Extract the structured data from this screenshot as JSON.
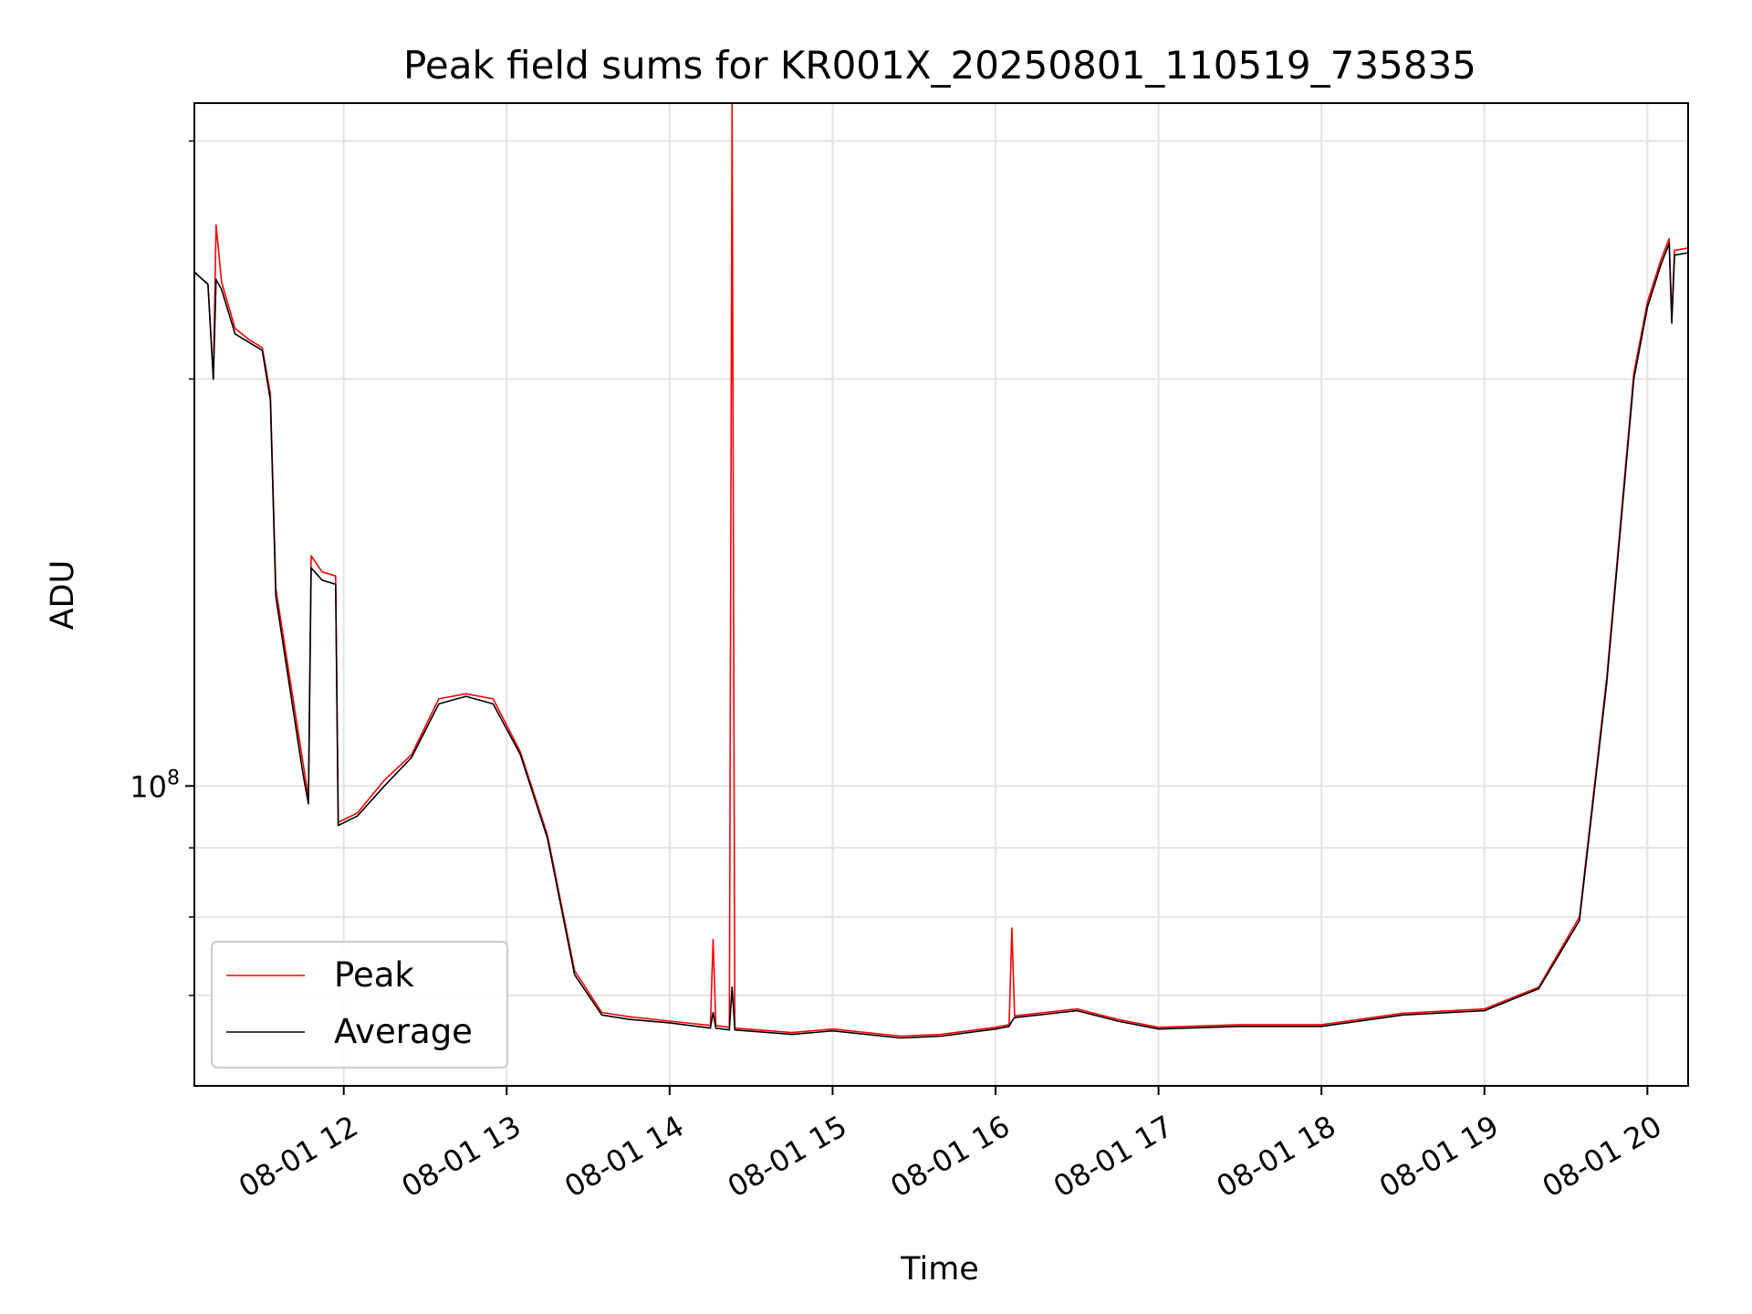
{
  "chart_data": {
    "type": "line",
    "title": "Peak field sums for KR001X_20250801_110519_735835",
    "xlabel": "Time",
    "ylabel": "ADU",
    "yscale": "log",
    "xlim": [
      "08-01 11:05",
      "08-01 20:15"
    ],
    "ylim": [
      60000000,
      320000000
    ],
    "grid": true,
    "legend_position": "lower-left",
    "x_ticks": [
      "08-01 12",
      "08-01 13",
      "08-01 14",
      "08-01 15",
      "08-01 16",
      "08-01 17",
      "08-01 18",
      "08-01 19",
      "08-01 20"
    ],
    "y_tick_label": {
      "base": "10",
      "exponent": "8"
    },
    "series": [
      {
        "name": "Peak",
        "color": "#ff0000",
        "points": [
          [
            "08-01 11:05",
            240000000
          ],
          [
            "08-01 11:10",
            235000000
          ],
          [
            "08-01 11:12",
            200000000
          ],
          [
            "08-01 11:13",
            260000000
          ],
          [
            "08-01 11:15",
            236000000
          ],
          [
            "08-01 11:20",
            218000000
          ],
          [
            "08-01 11:25",
            214000000
          ],
          [
            "08-01 11:30",
            211000000
          ],
          [
            "08-01 11:33",
            195000000
          ],
          [
            "08-01 11:35",
            140000000
          ],
          [
            "08-01 11:45",
            104000000
          ],
          [
            "08-01 11:47",
            98000000
          ],
          [
            "08-01 11:48",
            148000000
          ],
          [
            "08-01 11:52",
            144000000
          ],
          [
            "08-01 11:57",
            143000000
          ],
          [
            "08-01 11:58",
            94000000
          ],
          [
            "08-01 12:05",
            95500000
          ],
          [
            "08-01 12:15",
            101000000
          ],
          [
            "08-01 12:25",
            105500000
          ],
          [
            "08-01 12:35",
            116000000
          ],
          [
            "08-01 12:45",
            117000000
          ],
          [
            "08-01 12:55",
            116000000
          ],
          [
            "08-01 13:05",
            106000000
          ],
          [
            "08-01 13:15",
            92000000
          ],
          [
            "08-01 13:25",
            73000000
          ],
          [
            "08-01 13:35",
            68000000
          ],
          [
            "08-01 13:45",
            67500000
          ],
          [
            "08-01 14:00",
            67000000
          ],
          [
            "08-01 14:15",
            66500000
          ],
          [
            "08-01 14:16",
            77000000
          ],
          [
            "08-01 14:17",
            66500000
          ],
          [
            "08-01 14:22",
            66300000
          ],
          [
            "08-01 14:23",
            320000000
          ],
          [
            "08-01 14:24",
            66200000
          ],
          [
            "08-01 14:45",
            65700000
          ],
          [
            "08-01 15:00",
            66100000
          ],
          [
            "08-01 15:25",
            65300000
          ],
          [
            "08-01 15:40",
            65500000
          ],
          [
            "08-01 16:00",
            66300000
          ],
          [
            "08-01 16:05",
            66600000
          ],
          [
            "08-01 16:06",
            78500000
          ],
          [
            "08-01 16:07",
            67600000
          ],
          [
            "08-01 16:30",
            68400000
          ],
          [
            "08-01 16:45",
            67200000
          ],
          [
            "08-01 17:00",
            66300000
          ],
          [
            "08-01 17:30",
            66600000
          ],
          [
            "08-01 18:00",
            66600000
          ],
          [
            "08-01 18:30",
            67900000
          ],
          [
            "08-01 19:00",
            68400000
          ],
          [
            "08-01 19:20",
            71000000
          ],
          [
            "08-01 19:35",
            80000000
          ],
          [
            "08-01 19:45",
            120000000
          ],
          [
            "08-01 19:55",
            202000000
          ],
          [
            "08-01 20:00",
            228000000
          ],
          [
            "08-01 20:05",
            245000000
          ],
          [
            "08-01 20:08",
            254000000
          ],
          [
            "08-01 20:09",
            222000000
          ],
          [
            "08-01 20:10",
            249000000
          ],
          [
            "08-01 20:15",
            250000000
          ]
        ]
      },
      {
        "name": "Average",
        "color": "#000000",
        "points": [
          [
            "08-01 11:05",
            240000000
          ],
          [
            "08-01 11:10",
            235000000
          ],
          [
            "08-01 11:12",
            200000000
          ],
          [
            "08-01 11:13",
            237000000
          ],
          [
            "08-01 11:15",
            233000000
          ],
          [
            "08-01 11:20",
            216000000
          ],
          [
            "08-01 11:25",
            213000000
          ],
          [
            "08-01 11:30",
            210000000
          ],
          [
            "08-01 11:33",
            193000000
          ],
          [
            "08-01 11:35",
            138000000
          ],
          [
            "08-01 11:45",
            102000000
          ],
          [
            "08-01 11:47",
            97000000
          ],
          [
            "08-01 11:48",
            145000000
          ],
          [
            "08-01 11:52",
            142000000
          ],
          [
            "08-01 11:57",
            141000000
          ],
          [
            "08-01 11:58",
            93500000
          ],
          [
            "08-01 12:05",
            95000000
          ],
          [
            "08-01 12:15",
            100000000
          ],
          [
            "08-01 12:25",
            105000000
          ],
          [
            "08-01 12:35",
            115000000
          ],
          [
            "08-01 12:45",
            116500000
          ],
          [
            "08-01 12:55",
            115000000
          ],
          [
            "08-01 13:05",
            105500000
          ],
          [
            "08-01 13:15",
            91500000
          ],
          [
            "08-01 13:25",
            72500000
          ],
          [
            "08-01 13:35",
            67700000
          ],
          [
            "08-01 13:45",
            67200000
          ],
          [
            "08-01 14:00",
            66800000
          ],
          [
            "08-01 14:15",
            66200000
          ],
          [
            "08-01 14:16",
            68000000
          ],
          [
            "08-01 14:17",
            66200000
          ],
          [
            "08-01 14:22",
            66000000
          ],
          [
            "08-01 14:23",
            71000000
          ],
          [
            "08-01 14:24",
            66000000
          ],
          [
            "08-01 14:45",
            65500000
          ],
          [
            "08-01 15:00",
            65900000
          ],
          [
            "08-01 15:25",
            65100000
          ],
          [
            "08-01 15:40",
            65300000
          ],
          [
            "08-01 16:00",
            66100000
          ],
          [
            "08-01 16:05",
            66400000
          ],
          [
            "08-01 16:06",
            67000000
          ],
          [
            "08-01 16:07",
            67400000
          ],
          [
            "08-01 16:30",
            68200000
          ],
          [
            "08-01 16:45",
            67000000
          ],
          [
            "08-01 17:00",
            66100000
          ],
          [
            "08-01 17:30",
            66400000
          ],
          [
            "08-01 18:00",
            66400000
          ],
          [
            "08-01 18:30",
            67700000
          ],
          [
            "08-01 19:00",
            68200000
          ],
          [
            "08-01 19:20",
            70800000
          ],
          [
            "08-01 19:35",
            79500000
          ],
          [
            "08-01 19:45",
            119000000
          ],
          [
            "08-01 19:55",
            200000000
          ],
          [
            "08-01 20:00",
            226000000
          ],
          [
            "08-01 20:05",
            243000000
          ],
          [
            "08-01 20:08",
            252000000
          ],
          [
            "08-01 20:09",
            220000000
          ],
          [
            "08-01 20:10",
            247000000
          ],
          [
            "08-01 20:15",
            248000000
          ]
        ]
      }
    ]
  }
}
